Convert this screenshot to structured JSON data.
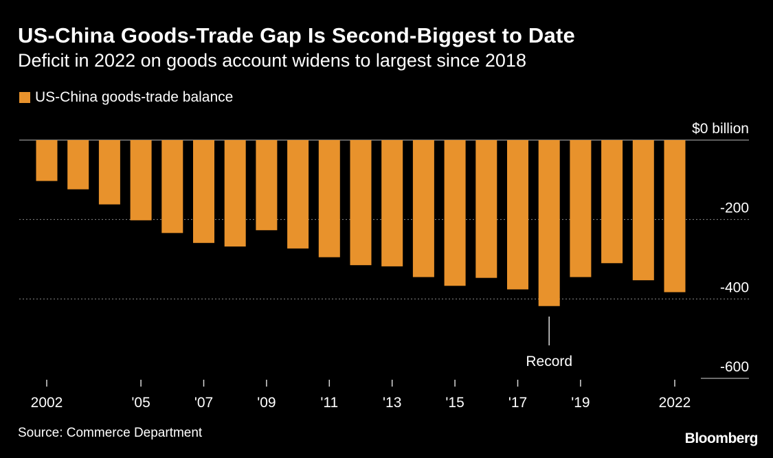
{
  "header": {
    "title": "US-China Goods-Trade Gap Is Second-Biggest to Date",
    "subtitle": "Deficit in 2022 on goods account widens to largest since 2018"
  },
  "footer": {
    "source": "Source: Commerce Department",
    "brand": "Bloomberg"
  },
  "colors": {
    "background": "#000000",
    "bar": "#e8922c",
    "text": "#ffffff",
    "grid": "#8c8c8c"
  },
  "chart_data": {
    "type": "bar",
    "categories": [
      "2002",
      "2003",
      "2004",
      "2005",
      "2006",
      "2007",
      "2008",
      "2009",
      "2010",
      "2011",
      "2012",
      "2013",
      "2014",
      "2015",
      "2016",
      "2017",
      "2018",
      "2019",
      "2020",
      "2021",
      "2022"
    ],
    "series": [
      {
        "name": "US-China goods-trade balance",
        "values": [
          -103,
          -124,
          -162,
          -202,
          -234,
          -259,
          -268,
          -227,
          -273,
          -295,
          -315,
          -318,
          -345,
          -367,
          -347,
          -376,
          -418,
          -345,
          -310,
          -353,
          -383
        ]
      }
    ],
    "ylim": [
      -600,
      0
    ],
    "yticks": [
      0,
      -200,
      -400,
      -600
    ],
    "ytick_labels": [
      "$0 billion",
      "-200",
      "-400",
      "-600"
    ],
    "xtick_labels": [
      {
        "category": "2002",
        "label": "2002"
      },
      {
        "category": "2005",
        "label": "'05"
      },
      {
        "category": "2007",
        "label": "'07"
      },
      {
        "category": "2009",
        "label": "'09"
      },
      {
        "category": "2011",
        "label": "'11"
      },
      {
        "category": "2013",
        "label": "'13"
      },
      {
        "category": "2015",
        "label": "'15"
      },
      {
        "category": "2017",
        "label": "'17"
      },
      {
        "category": "2019",
        "label": "'19"
      },
      {
        "category": "2022",
        "label": "2022"
      }
    ],
    "annotation": {
      "category": "2018",
      "text": "Record"
    },
    "legend_position": "top-left",
    "grid": true
  }
}
